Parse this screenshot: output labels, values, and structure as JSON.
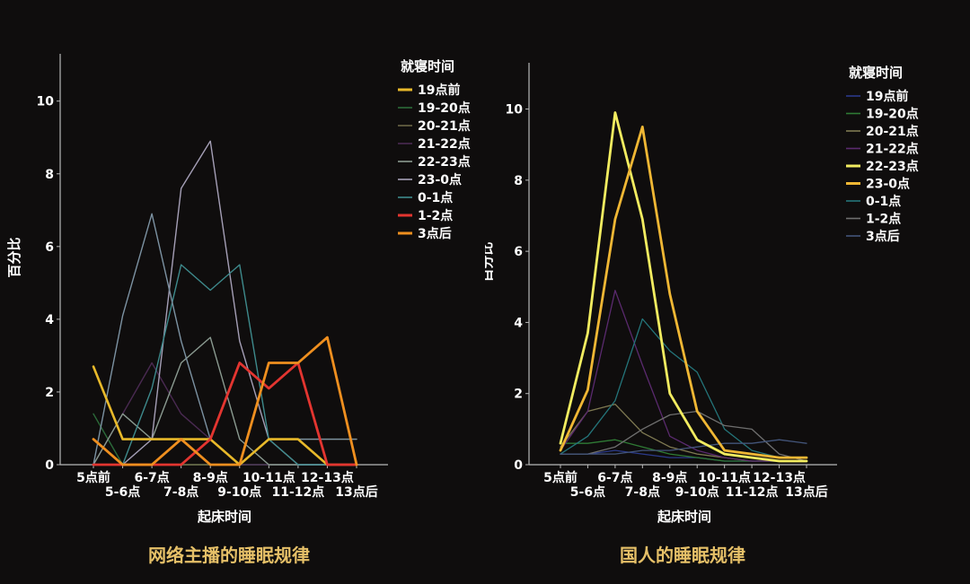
{
  "colors": {
    "background": "#0f0d0d",
    "axis": "#b8b8b8",
    "text": "#ffffff",
    "caption": "#e6c068"
  },
  "chart_data": [
    {
      "type": "line",
      "caption": "网络主播的睡眠规律",
      "xlabel": "起床时间",
      "ylabel": "百分比",
      "legend_title": "就寝时间",
      "legend_position": "top-right",
      "ylim": [
        0,
        11.3
      ],
      "yticks": [
        0,
        2,
        4,
        6,
        8,
        10
      ],
      "categories": [
        "5点前",
        "5-6点",
        "6-7点",
        "7-8点",
        "8-9点",
        "9-10点",
        "10-11点",
        "11-12点",
        "12-13点",
        "13点后"
      ],
      "series": [
        {
          "name": "19点前",
          "color": "#e8b92a",
          "width": 2.6,
          "values": [
            2.7,
            0.7,
            0.7,
            0.7,
            0.7,
            0,
            0.7,
            0.7,
            0,
            0
          ]
        },
        {
          "name": "19-20点",
          "color": "#2c6b3a",
          "width": 1.4,
          "values": [
            1.4,
            0,
            0,
            0,
            0,
            0,
            0,
            0,
            0,
            0
          ]
        },
        {
          "name": "20-21点",
          "color": "#6a6645",
          "width": 1.4,
          "values": [
            0,
            0,
            0,
            0,
            0,
            0,
            0.7,
            0.7,
            0.7,
            0.7
          ]
        },
        {
          "name": "21-22点",
          "color": "#4a2a52",
          "width": 1.4,
          "values": [
            0,
            1.4,
            2.8,
            1.4,
            0.7,
            0,
            0,
            0,
            0,
            0
          ]
        },
        {
          "name": "22-23点",
          "color": "#8a9a90",
          "width": 1.4,
          "values": [
            0,
            1.4,
            0.7,
            2.8,
            3.5,
            0.7,
            0,
            0,
            0,
            0
          ]
        },
        {
          "name": "23-0点",
          "color": "#a59fb6",
          "width": 1.4,
          "values": [
            0,
            0,
            0.7,
            7.6,
            8.9,
            3.4,
            0.7,
            0,
            0,
            0
          ]
        },
        {
          "name": "0-1点",
          "color": "#3e8a8c",
          "width": 1.4,
          "values": [
            0,
            0,
            2.1,
            5.5,
            4.8,
            5.5,
            0.7,
            0,
            0,
            0
          ]
        },
        {
          "name": "1-2点",
          "color": "#e33530",
          "width": 2.8,
          "values": [
            0,
            0,
            0,
            0,
            0.7,
            2.8,
            2.1,
            2.8,
            0,
            0
          ]
        },
        {
          "name": "3点后",
          "color": "#ef8f1f",
          "width": 2.8,
          "values": [
            0.7,
            0,
            0,
            0.7,
            0,
            0,
            2.8,
            2.8,
            3.5,
            0
          ]
        },
        {
          "name": "",
          "color": "#7c92a2",
          "width": 1.4,
          "values": [
            0,
            4.1,
            6.9,
            3.4,
            0.7,
            0,
            0.7,
            0.7,
            0.7,
            0.7
          ]
        }
      ]
    },
    {
      "type": "line",
      "caption": "国人的睡眠规律",
      "xlabel": "起床时间",
      "ylabel": "百分比",
      "legend_title": "就寝时间",
      "legend_position": "top-right",
      "ylim": [
        0,
        11.3
      ],
      "yticks": [
        0,
        2,
        4,
        6,
        8,
        10
      ],
      "categories": [
        "5点前",
        "5-6点",
        "6-7点",
        "7-8点",
        "8-9点",
        "9-10点",
        "10-11点",
        "11-12点",
        "12-13点",
        "13点后"
      ],
      "series": [
        {
          "name": "19点前",
          "color": "#2b3a8a",
          "width": 1.3,
          "values": [
            0.3,
            0.3,
            0.4,
            0.3,
            0.2,
            0.2,
            0.1,
            0.1,
            0.1,
            0.1
          ]
        },
        {
          "name": "19-20点",
          "color": "#2f7a35",
          "width": 1.3,
          "values": [
            0.6,
            0.6,
            0.7,
            0.5,
            0.3,
            0.2,
            0.1,
            0.1,
            0.1,
            0.1
          ]
        },
        {
          "name": "20-21点",
          "color": "#7f7a52",
          "width": 1.3,
          "values": [
            0.5,
            1.5,
            1.7,
            0.9,
            0.5,
            0.3,
            0.2,
            0.1,
            0.1,
            0.1
          ]
        },
        {
          "name": "21-22点",
          "color": "#5a2a6e",
          "width": 1.3,
          "values": [
            0.4,
            1.5,
            4.9,
            2.8,
            0.8,
            0.4,
            0.2,
            0.1,
            0.1,
            0.1
          ]
        },
        {
          "name": "22-23点",
          "color": "#f2ec60",
          "width": 2.8,
          "values": [
            0.6,
            3.7,
            9.9,
            6.9,
            2.0,
            0.7,
            0.3,
            0.2,
            0.1,
            0.1
          ]
        },
        {
          "name": "23-0点",
          "color": "#f0b734",
          "width": 2.8,
          "values": [
            0.4,
            2.1,
            6.9,
            9.5,
            4.8,
            1.5,
            0.4,
            0.3,
            0.2,
            0.2
          ]
        },
        {
          "name": "0-1点",
          "color": "#24757a",
          "width": 1.3,
          "values": [
            0.3,
            0.8,
            1.8,
            4.1,
            3.2,
            2.6,
            1.0,
            0.4,
            0.2,
            0.2
          ]
        },
        {
          "name": "1-2点",
          "color": "#6f6f6f",
          "width": 1.3,
          "values": [
            0.3,
            0.3,
            0.5,
            1.0,
            1.4,
            1.5,
            1.1,
            1.0,
            0.3,
            0.1
          ]
        },
        {
          "name": "3点后",
          "color": "#43557a",
          "width": 1.3,
          "values": [
            0.3,
            0.3,
            0.3,
            0.4,
            0.4,
            0.5,
            0.6,
            0.6,
            0.7,
            0.6
          ]
        }
      ]
    }
  ]
}
